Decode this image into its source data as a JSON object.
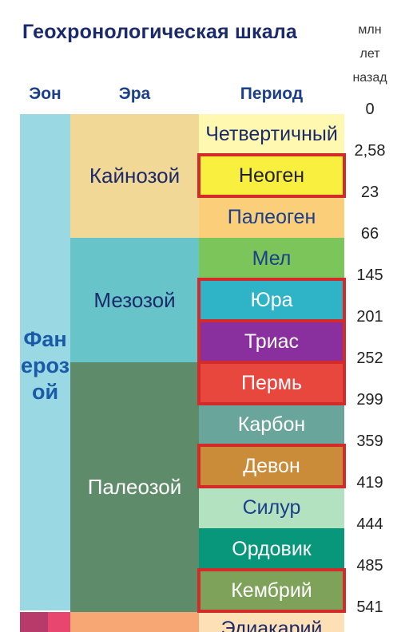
{
  "title": "Геохронологическая шкала",
  "units": [
    "млн",
    "лет",
    "назад"
  ],
  "headers": {
    "eon": "Эон",
    "era": "Эра",
    "period": "Период"
  },
  "eon": {
    "label": "Фанерозой",
    "color": "#9ad9e3",
    "text_color": "#1a5aa8"
  },
  "eras": [
    {
      "label": "Кайнозой",
      "color": "#f2d896",
      "text_color": "#1b2a6b"
    },
    {
      "label": "Мезозой",
      "color": "#67c5ca",
      "text_color": "#1b2a6b"
    },
    {
      "label": "Палеозой",
      "color": "#5e8c6a",
      "text_color": "#ffffff"
    }
  ],
  "periods": [
    {
      "label": "Четвертичный",
      "color": "#fff8b0",
      "text_color": "#1b2a6b",
      "highlighted": false
    },
    {
      "label": "Неоген",
      "color": "#f9ef3f",
      "text_color": "#222222",
      "highlighted": true
    },
    {
      "label": "Палеоген",
      "color": "#fbcf7a",
      "text_color": "#1b3f8a",
      "highlighted": false
    },
    {
      "label": "Мел",
      "color": "#7cc55a",
      "text_color": "#1b3f8a",
      "highlighted": false
    },
    {
      "label": "Юра",
      "color": "#2fb3c7",
      "text_color": "#ffffff",
      "highlighted": true
    },
    {
      "label": "Триас",
      "color": "#8a2f9e",
      "text_color": "#ffffff",
      "highlighted": true
    },
    {
      "label": "Пермь",
      "color": "#e8473e",
      "text_color": "#ffffff",
      "highlighted": true
    },
    {
      "label": "Карбон",
      "color": "#6aa59b",
      "text_color": "#ffffff",
      "highlighted": false
    },
    {
      "label": "Девон",
      "color": "#cb8c3a",
      "text_color": "#ffffff",
      "highlighted": true
    },
    {
      "label": "Силур",
      "color": "#b3e2c0",
      "text_color": "#1b3f8a",
      "highlighted": false
    },
    {
      "label": "Ордовик",
      "color": "#08977a",
      "text_color": "#ffffff",
      "highlighted": false
    },
    {
      "label": "Кембрий",
      "color": "#7fa25a",
      "text_color": "#ffffff",
      "highlighted": true
    },
    {
      "label": "Эдиакарий",
      "color": "#fde0b6",
      "text_color": "#1b2a6b",
      "highlighted": false
    }
  ],
  "ages": [
    "0",
    "2,58",
    "23",
    "66",
    "145",
    "201",
    "252",
    "299",
    "359",
    "419",
    "444",
    "485",
    "541"
  ],
  "bottom_strip_colors": [
    "#b73a6b",
    "#e8456f",
    "#f7a774"
  ]
}
